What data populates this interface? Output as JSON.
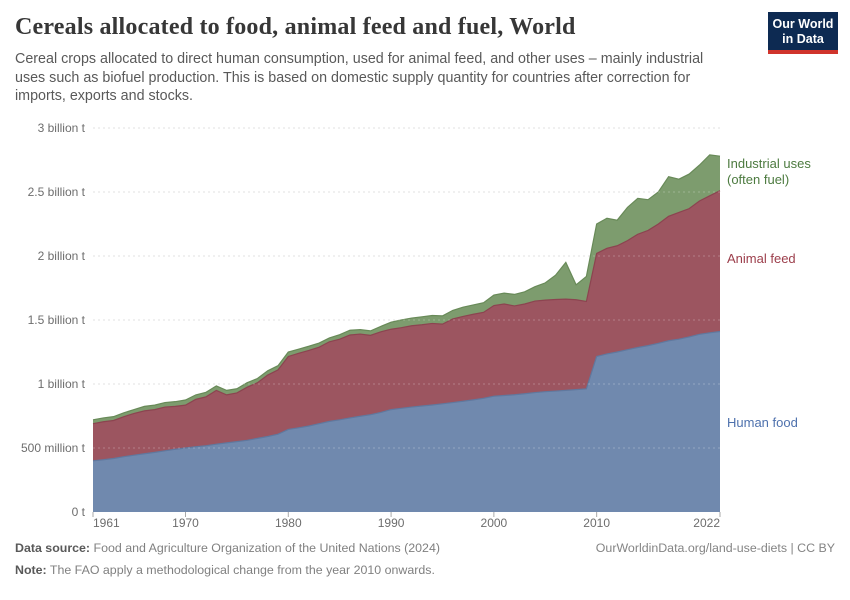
{
  "header": {
    "title": "Cereals allocated to food, animal feed and fuel, World",
    "subtitle_lines": [
      "Cereal crops allocated to direct human consumption, used for animal feed, and other uses – mainly industrial",
      "uses such as biofuel production. This is based on domestic supply quantity for countries after correction for",
      "imports, exports and stocks."
    ],
    "logo": {
      "line1": "Our World",
      "line2": "in Data",
      "bg_color": "#0d2a52",
      "accent_color": "#d0342c"
    }
  },
  "footer": {
    "source_label": "Data source:",
    "source_text": "Food and Agriculture Organization of the United Nations (2024)",
    "note_label": "Note:",
    "note_text": "The FAO apply a methodological change from the year 2010 onwards.",
    "link_text": "OurWorldinData.org/land-use-diets | CC BY"
  },
  "chart_data": {
    "type": "area",
    "stacked": true,
    "title": "Cereals allocated to food, animal feed and fuel, World",
    "xlabel": "",
    "ylabel": "",
    "unit": "billion tonnes",
    "ylim": [
      0,
      3
    ],
    "grid": "horizontal dashed",
    "legend_position": "right-of-plot colored text",
    "x": [
      1961,
      1962,
      1963,
      1964,
      1965,
      1966,
      1967,
      1968,
      1969,
      1970,
      1971,
      1972,
      1973,
      1974,
      1975,
      1976,
      1977,
      1978,
      1979,
      1980,
      1981,
      1982,
      1983,
      1984,
      1985,
      1986,
      1987,
      1988,
      1989,
      1990,
      1991,
      1992,
      1993,
      1994,
      1995,
      1996,
      1997,
      1998,
      1999,
      2000,
      2001,
      2002,
      2003,
      2004,
      2005,
      2006,
      2007,
      2008,
      2009,
      2010,
      2011,
      2012,
      2013,
      2014,
      2015,
      2016,
      2017,
      2018,
      2019,
      2020,
      2021,
      2022
    ],
    "x_ticks": [
      1961,
      1970,
      1980,
      1990,
      2000,
      2010,
      2022
    ],
    "y_ticks": [
      {
        "value": 0,
        "label": "0 t"
      },
      {
        "value": 0.5,
        "label": "500 million t"
      },
      {
        "value": 1,
        "label": "1 billion t"
      },
      {
        "value": 1.5,
        "label": "1.5 billion t"
      },
      {
        "value": 2,
        "label": "2 billion t"
      },
      {
        "value": 2.5,
        "label": "2.5 billion t"
      },
      {
        "value": 3,
        "label": "3 billion t"
      }
    ],
    "series": [
      {
        "name": "Human food",
        "legend_lines": [
          "Human food"
        ],
        "color": "#7089ae",
        "edge_color": "#60789e",
        "label_color": "#4e71ad",
        "values": [
          0.4,
          0.408,
          0.418,
          0.432,
          0.444,
          0.455,
          0.466,
          0.478,
          0.49,
          0.5,
          0.51,
          0.518,
          0.53,
          0.54,
          0.55,
          0.56,
          0.575,
          0.59,
          0.608,
          0.645,
          0.658,
          0.672,
          0.69,
          0.708,
          0.72,
          0.735,
          0.748,
          0.76,
          0.778,
          0.8,
          0.81,
          0.82,
          0.828,
          0.836,
          0.845,
          0.855,
          0.865,
          0.876,
          0.888,
          0.905,
          0.91,
          0.916,
          0.924,
          0.933,
          0.94,
          0.945,
          0.95,
          0.956,
          0.962,
          1.215,
          1.235,
          1.25,
          1.268,
          1.285,
          1.3,
          1.318,
          1.338,
          1.35,
          1.368,
          1.388,
          1.4,
          1.41
        ]
      },
      {
        "name": "Animal feed",
        "legend_lines": [
          "Animal feed"
        ],
        "color": "#9c5560",
        "edge_color": "#8c4450",
        "label_color": "#9c3e4b",
        "values": [
          0.29,
          0.297,
          0.297,
          0.313,
          0.326,
          0.335,
          0.334,
          0.342,
          0.335,
          0.335,
          0.37,
          0.382,
          0.42,
          0.375,
          0.38,
          0.415,
          0.435,
          0.48,
          0.502,
          0.57,
          0.582,
          0.59,
          0.598,
          0.622,
          0.63,
          0.648,
          0.642,
          0.62,
          0.63,
          0.628,
          0.63,
          0.635,
          0.635,
          0.637,
          0.623,
          0.653,
          0.663,
          0.669,
          0.672,
          0.708,
          0.715,
          0.694,
          0.701,
          0.715,
          0.715,
          0.715,
          0.713,
          0.702,
          0.683,
          0.805,
          0.825,
          0.83,
          0.852,
          0.885,
          0.9,
          0.932,
          0.972,
          0.99,
          1.002,
          1.042,
          1.07,
          1.1
        ]
      },
      {
        "name": "Industrial uses (often fuel)",
        "legend_lines": [
          "Industrial uses",
          "(often fuel)"
        ],
        "color": "#7d9c6e",
        "edge_color": "#688a58",
        "label_color": "#4c7a3f",
        "values": [
          0.03,
          0.03,
          0.03,
          0.03,
          0.03,
          0.035,
          0.035,
          0.035,
          0.037,
          0.04,
          0.035,
          0.035,
          0.035,
          0.035,
          0.033,
          0.035,
          0.033,
          0.033,
          0.033,
          0.035,
          0.032,
          0.033,
          0.032,
          0.03,
          0.035,
          0.037,
          0.035,
          0.035,
          0.042,
          0.055,
          0.06,
          0.06,
          0.062,
          0.062,
          0.064,
          0.067,
          0.072,
          0.073,
          0.075,
          0.082,
          0.085,
          0.09,
          0.095,
          0.112,
          0.135,
          0.19,
          0.287,
          0.117,
          0.195,
          0.23,
          0.235,
          0.2,
          0.26,
          0.28,
          0.24,
          0.25,
          0.31,
          0.26,
          0.27,
          0.28,
          0.32,
          0.27
        ]
      }
    ]
  }
}
